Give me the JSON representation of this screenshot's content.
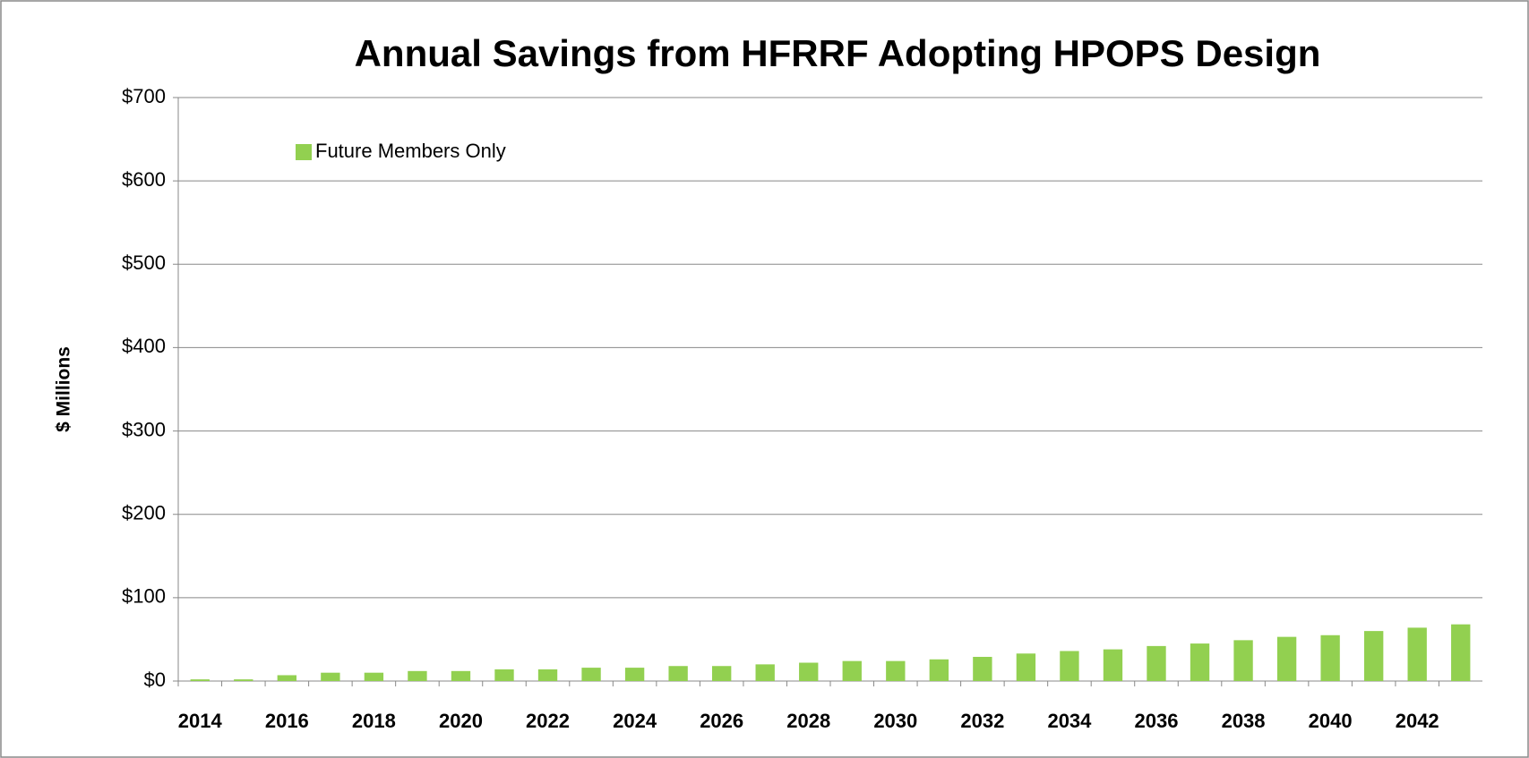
{
  "chart_data": {
    "type": "bar",
    "title": "Annual Savings from HFRRF Adopting HPOPS Design",
    "y_label": "$ Millions",
    "categories": [
      "2014",
      null,
      "2016",
      null,
      "2018",
      null,
      "2020",
      null,
      "2022",
      null,
      "2024",
      null,
      "2026",
      null,
      "2028",
      null,
      "2030",
      null,
      "2032",
      null,
      "2034",
      null,
      "2036",
      null,
      "2038",
      null,
      "2040",
      null,
      "2042",
      null
    ],
    "series": [
      {
        "name": "Future Members Only",
        "color": "#92d050",
        "values": [
          2,
          2,
          7,
          10,
          10,
          12,
          12,
          14,
          14,
          16,
          16,
          18,
          18,
          20,
          22,
          24,
          24,
          26,
          29,
          33,
          36,
          38,
          42,
          45,
          49,
          53,
          55,
          60,
          64,
          68
        ]
      }
    ],
    "ylim": [
      0,
      700
    ],
    "yticks": [
      {
        "value": 0,
        "label": "$0"
      },
      {
        "value": 100,
        "label": "$100"
      },
      {
        "value": 200,
        "label": "$200"
      },
      {
        "value": 300,
        "label": "$300"
      },
      {
        "value": 400,
        "label": "$400"
      },
      {
        "value": 500,
        "label": "$500"
      },
      {
        "value": 600,
        "label": "$600"
      },
      {
        "value": 700,
        "label": "$700"
      }
    ],
    "grid": true,
    "legend": "top-left"
  }
}
